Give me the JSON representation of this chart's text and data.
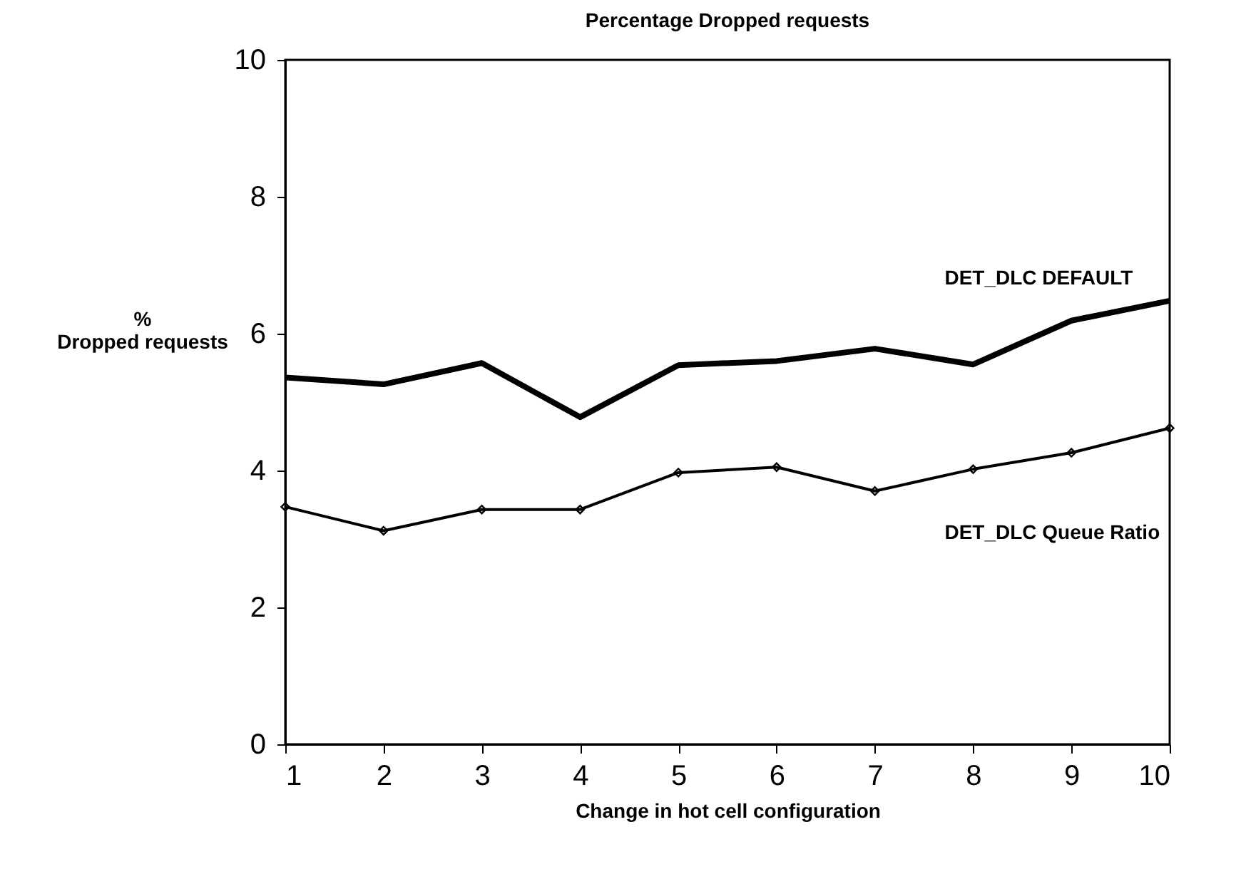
{
  "chart_data": {
    "type": "line",
    "title": "Percentage Dropped requests",
    "xlabel": "Change in hot cell configuration",
    "ylabel": "% Dropped requests",
    "x": [
      1,
      2,
      3,
      4,
      5,
      6,
      7,
      8,
      9,
      10
    ],
    "series": [
      {
        "name": "DET_DLC DEFAULT",
        "color": "#000000",
        "marker": "none",
        "values": [
          5.36,
          5.26,
          5.57,
          4.78,
          5.54,
          5.6,
          5.78,
          5.55,
          6.19,
          6.48
        ]
      },
      {
        "name": "DET_DLC Queue Ratio",
        "color": "#000000",
        "marker": "diamond",
        "values": [
          3.47,
          3.12,
          3.43,
          3.43,
          3.97,
          4.05,
          3.7,
          4.02,
          4.26,
          4.62
        ]
      }
    ],
    "xlim": [
      1,
      10
    ],
    "xticks": [
      1,
      2,
      3,
      4,
      5,
      6,
      7,
      8,
      9,
      10
    ],
    "ylim": [
      0,
      10
    ],
    "yticks": [
      0,
      2,
      4,
      6,
      8,
      10
    ],
    "grid": false
  }
}
